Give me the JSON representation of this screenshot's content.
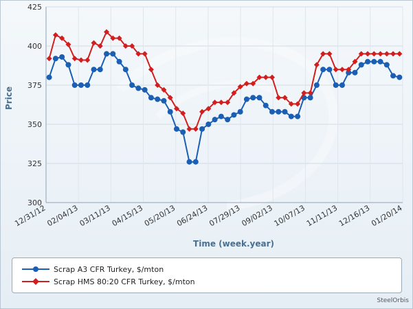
{
  "chart_data": {
    "type": "line",
    "title": "",
    "xlabel": "Time (week.year)",
    "ylabel": "Price",
    "ylim": [
      300,
      425
    ],
    "yticks": [
      300,
      325,
      350,
      375,
      400,
      425
    ],
    "grid": true,
    "legend_position": "bottom",
    "x_tick_labels": [
      "12/31/12",
      "02/04/13",
      "03/11/13",
      "04/15/13",
      "05/20/13",
      "06/24/13",
      "07/29/13",
      "09/02/13",
      "10/07/13",
      "11/11/13",
      "12/16/13",
      "01/20/14"
    ],
    "series": [
      {
        "name": "Scrap A3 CFR Turkey, $/mton",
        "color": "#1a5fb4",
        "marker": "circle",
        "values": [
          380,
          392,
          393,
          388,
          375,
          375,
          375,
          385,
          385,
          395,
          395,
          390,
          385,
          375,
          373,
          372,
          367,
          366,
          365,
          358,
          347,
          345,
          326,
          326,
          347,
          350,
          353,
          355,
          353,
          356,
          358,
          366,
          367,
          367,
          362,
          358,
          358,
          358,
          355,
          355,
          367,
          367,
          375,
          385,
          385,
          375,
          375,
          383,
          383,
          388,
          390,
          390,
          390,
          388,
          381,
          380
        ]
      },
      {
        "name": "Scrap HMS 80:20 CFR Turkey, $/mton",
        "color": "#d11f1f",
        "marker": "diamond",
        "values": [
          392,
          407,
          405,
          401,
          392,
          391,
          391,
          402,
          400,
          409,
          405,
          405,
          400,
          400,
          395,
          395,
          385,
          375,
          372,
          367,
          360,
          357,
          347,
          347,
          358,
          360,
          364,
          364,
          364,
          370,
          374,
          376,
          376,
          380,
          380,
          380,
          367,
          367,
          363,
          363,
          370,
          370,
          388,
          395,
          395,
          385,
          385,
          385,
          390,
          395,
          395,
          395,
          395,
          395,
          395,
          395
        ]
      }
    ]
  },
  "credit": "SteelOrbis"
}
